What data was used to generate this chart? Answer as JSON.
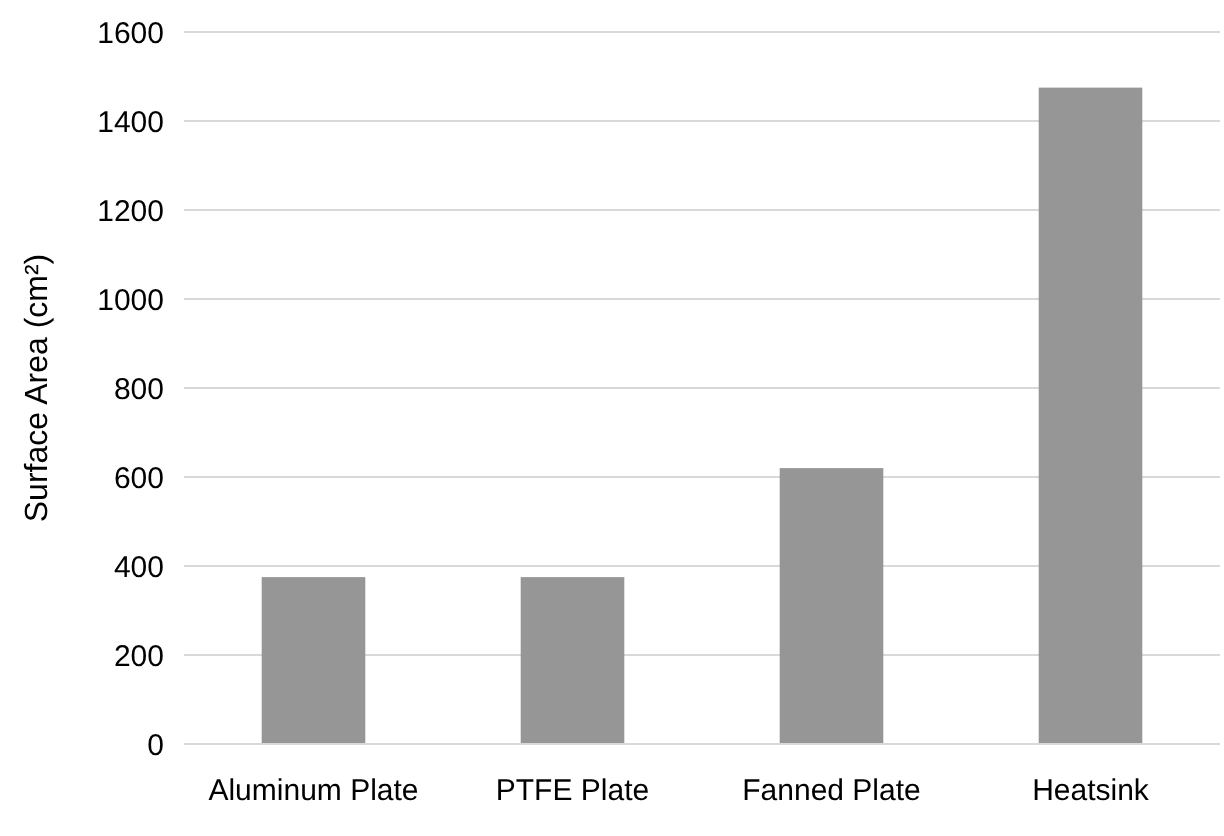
{
  "chart_data": {
    "type": "bar",
    "ylabel": "Surface Area (cm²)",
    "categories": [
      "Aluminum Plate",
      "PTFE Plate",
      "Fanned Plate",
      "Heatsink"
    ],
    "values": [
      375,
      375,
      620,
      1475
    ],
    "color": "#969696",
    "ylim": [
      0,
      1600
    ],
    "yticks": [
      0,
      200,
      400,
      600,
      800,
      1000,
      1200,
      1400,
      1600
    ],
    "grid": "y"
  }
}
